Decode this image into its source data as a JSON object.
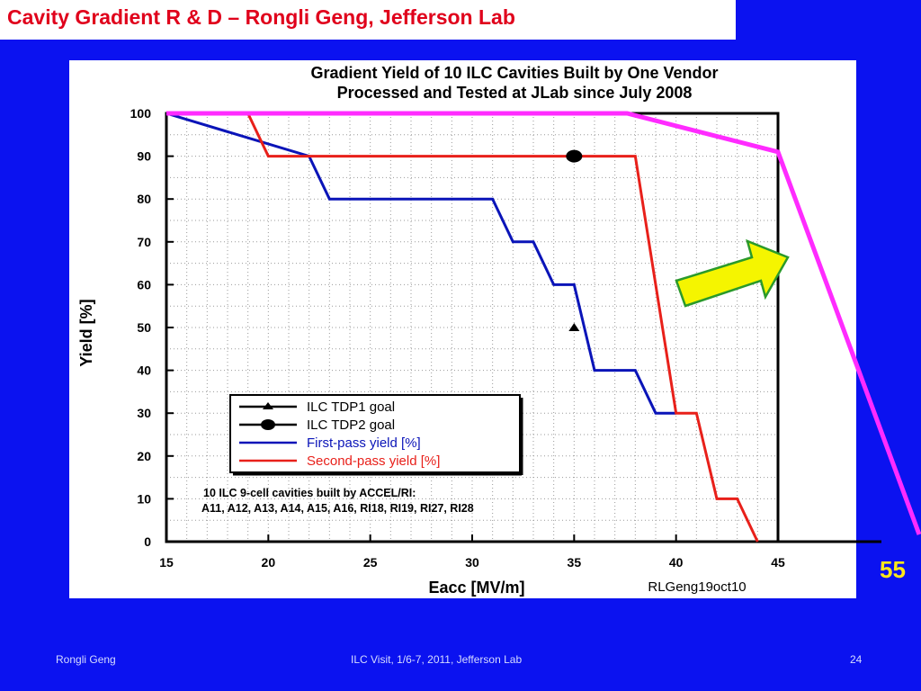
{
  "slide": {
    "title": "Cavity Gradient R & D – Rongli Geng, Jefferson Lab",
    "side_number": "55",
    "footer": {
      "left": "Rongli Geng",
      "center": "ILC Visit, 1/6-7, 2011, Jefferson Lab",
      "page": "24"
    }
  },
  "colors": {
    "background": "#0b12f0",
    "title_text": "#e0001b",
    "first_pass": "#0a14b8",
    "second_pass": "#e8201a",
    "magenta_line": "#ff2bff",
    "arrow_fill": "#f5f500",
    "arrow_stroke": "#2a9a2a",
    "side_number": "#ffe81a"
  },
  "chart_data": {
    "type": "line",
    "title_lines": [
      "Gradient  Yield  of  10  ILC  Cavities  Built  by  One  Vendor",
      "Processed  and  Tested  at  JLab  since  July  2008"
    ],
    "xlabel": "Eacc   [MV/m]",
    "ylabel": "Yield [%]",
    "xlim": [
      15,
      45
    ],
    "ylim": [
      0,
      100
    ],
    "xticks": [
      15,
      20,
      25,
      30,
      35,
      40,
      45
    ],
    "yticks": [
      0,
      10,
      20,
      30,
      40,
      50,
      60,
      70,
      80,
      90,
      100
    ],
    "grid": true,
    "legend_position": "lower-left",
    "series": [
      {
        "name": "First-pass yield [%]",
        "color": "#0a14b8",
        "x": [
          15,
          22,
          23,
          31,
          32,
          33,
          34,
          35,
          36,
          38,
          39,
          40
        ],
        "y": [
          100,
          90,
          80,
          80,
          70,
          70,
          60,
          60,
          40,
          40,
          30,
          30
        ]
      },
      {
        "name": "Second-pass yield [%]",
        "color": "#e8201a",
        "x": [
          15,
          19,
          20,
          38,
          40,
          41,
          42,
          43,
          44
        ],
        "y": [
          100,
          100,
          90,
          90,
          30,
          30,
          10,
          10,
          0
        ]
      }
    ],
    "markers": [
      {
        "name": "ILC TDP1 goal",
        "shape": "triangle",
        "x": 35,
        "y": 50
      },
      {
        "name": "ILC TDP2 goal",
        "shape": "circle",
        "x": 35,
        "y": 90
      }
    ],
    "legend": [
      {
        "label": "ILC TDP1 goal",
        "kind": "triangle",
        "color": "#000000"
      },
      {
        "label": "ILC TDP2 goal",
        "kind": "circle",
        "color": "#000000"
      },
      {
        "label": "First-pass yield [%]",
        "kind": "line",
        "color": "#0a14b8"
      },
      {
        "label": "Second-pass yield [%]",
        "kind": "line",
        "color": "#e8201a"
      }
    ],
    "annotation_lines": [
      "10  ILC  9-cell  cavities  built  by  ACCEL/RI:",
      "A11,  A12,  A13,  A14,  A15,  A16,  RI18,  RI19,  RI27,  RI28"
    ],
    "credit": "RLGeng19oct10",
    "overlay": {
      "name": "magenta envelope",
      "color": "#ff2bff",
      "x": [
        15,
        37.6,
        45
      ],
      "y": [
        100,
        100,
        91
      ]
    }
  }
}
